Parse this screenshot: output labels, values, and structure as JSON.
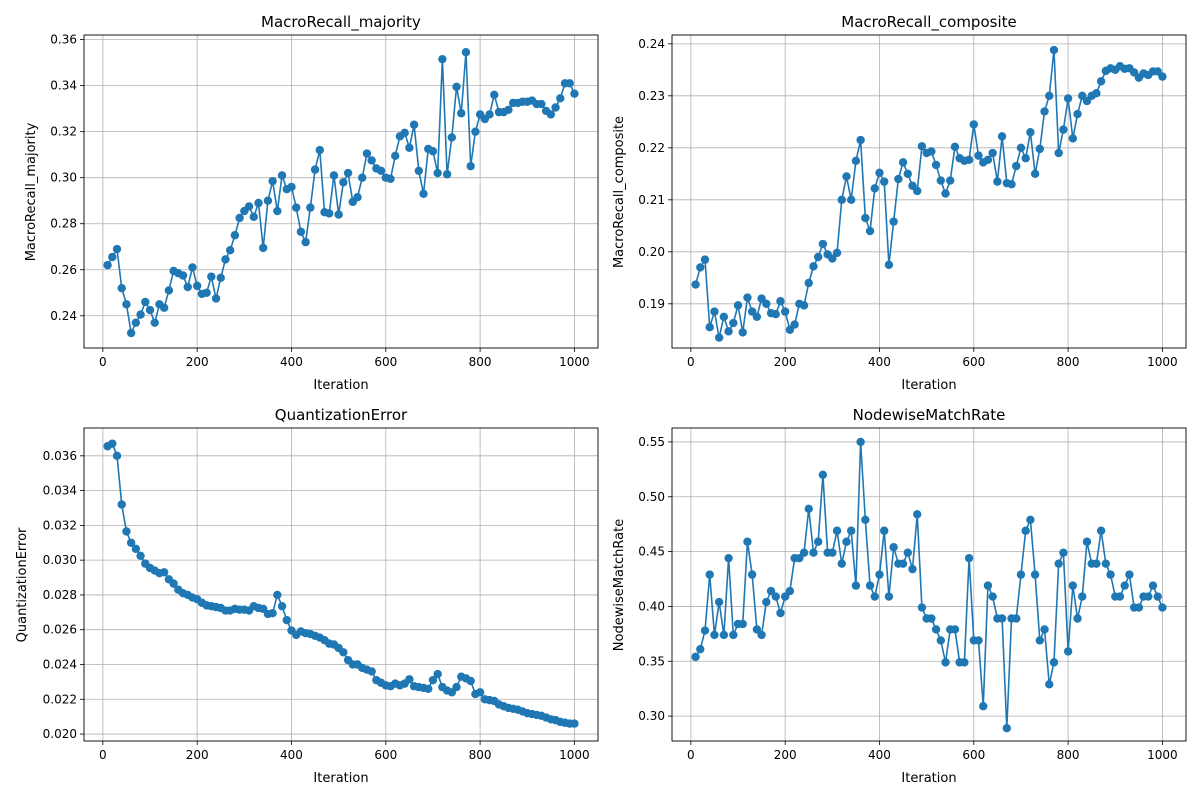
{
  "line_color": "#1f77b4",
  "grid_color": "#b0b0b0",
  "chart_data": [
    {
      "type": "line",
      "title": "MacroRecall_majority",
      "xlabel": "Iteration",
      "ylabel": "MacroRecall_majority",
      "grid": true,
      "xlim": [
        -40,
        1050
      ],
      "ylim": [
        0.226,
        0.362
      ],
      "xticks": [
        0,
        200,
        400,
        600,
        800,
        1000
      ],
      "yticks": [
        0.24,
        0.26,
        0.28,
        0.3,
        0.32,
        0.34,
        0.36
      ],
      "x": [
        10,
        20,
        30,
        40,
        50,
        60,
        70,
        80,
        90,
        100,
        110,
        120,
        130,
        140,
        150,
        160,
        170,
        180,
        190,
        200,
        210,
        220,
        230,
        240,
        250,
        260,
        270,
        280,
        290,
        300,
        310,
        320,
        330,
        340,
        350,
        360,
        370,
        380,
        390,
        400,
        410,
        420,
        430,
        440,
        450,
        460,
        470,
        480,
        490,
        500,
        510,
        520,
        530,
        540,
        550,
        560,
        570,
        580,
        590,
        600,
        610,
        620,
        630,
        640,
        650,
        660,
        670,
        680,
        690,
        700,
        710,
        720,
        730,
        740,
        750,
        760,
        770,
        780,
        790,
        800,
        810,
        820,
        830,
        840,
        850,
        860,
        870,
        880,
        890,
        900,
        910,
        920,
        930,
        940,
        950,
        960,
        970,
        980,
        990,
        1000
      ],
      "series": [
        {
          "values": [
            0.262,
            0.2655,
            0.269,
            0.252,
            0.245,
            0.2325,
            0.237,
            0.2405,
            0.246,
            0.2425,
            0.237,
            0.245,
            0.2435,
            0.251,
            0.2595,
            0.2585,
            0.2575,
            0.2525,
            0.261,
            0.253,
            0.2495,
            0.25,
            0.257,
            0.2475,
            0.2565,
            0.2645,
            0.2685,
            0.275,
            0.2825,
            0.2855,
            0.2875,
            0.283,
            0.289,
            0.2695,
            0.29,
            0.2985,
            0.2855,
            0.301,
            0.295,
            0.296,
            0.287,
            0.2765,
            0.272,
            0.287,
            0.3035,
            0.312,
            0.285,
            0.2845,
            0.301,
            0.284,
            0.298,
            0.302,
            0.2895,
            0.2915,
            0.3,
            0.3105,
            0.3075,
            0.304,
            0.303,
            0.3,
            0.2995,
            0.3095,
            0.318,
            0.3195,
            0.313,
            0.323,
            0.303,
            0.293,
            0.3125,
            0.3115,
            0.302,
            0.3515,
            0.3015,
            0.3175,
            0.3395,
            0.328,
            0.3545,
            0.305,
            0.32,
            0.3275,
            0.3255,
            0.3275,
            0.336,
            0.3285,
            0.3285,
            0.3295,
            0.3325,
            0.3325,
            0.333,
            0.333,
            0.3335,
            0.332,
            0.332,
            0.329,
            0.3275,
            0.3305,
            0.3345,
            0.341,
            0.341,
            0.3365
          ]
        }
      ]
    },
    {
      "type": "line",
      "title": "MacroRecall_composite",
      "xlabel": "Iteration",
      "ylabel": "MacroRecall_composite",
      "grid": true,
      "xlim": [
        -40,
        1050
      ],
      "ylim": [
        0.1815,
        0.2417
      ],
      "xticks": [
        0,
        200,
        400,
        600,
        800,
        1000
      ],
      "yticks": [
        0.19,
        0.2,
        0.21,
        0.22,
        0.23,
        0.24
      ],
      "x": [
        10,
        20,
        30,
        40,
        50,
        60,
        70,
        80,
        90,
        100,
        110,
        120,
        130,
        140,
        150,
        160,
        170,
        180,
        190,
        200,
        210,
        220,
        230,
        240,
        250,
        260,
        270,
        280,
        290,
        300,
        310,
        320,
        330,
        340,
        350,
        360,
        370,
        380,
        390,
        400,
        410,
        420,
        430,
        440,
        450,
        460,
        470,
        480,
        490,
        500,
        510,
        520,
        530,
        540,
        550,
        560,
        570,
        580,
        590,
        600,
        610,
        620,
        630,
        640,
        650,
        660,
        670,
        680,
        690,
        700,
        710,
        720,
        730,
        740,
        750,
        760,
        770,
        780,
        790,
        800,
        810,
        820,
        830,
        840,
        850,
        860,
        870,
        880,
        890,
        900,
        910,
        920,
        930,
        940,
        950,
        960,
        970,
        980,
        990,
        1000
      ],
      "series": [
        {
          "values": [
            0.1937,
            0.197,
            0.1985,
            0.1855,
            0.1885,
            0.1835,
            0.1875,
            0.1847,
            0.1863,
            0.1897,
            0.1845,
            0.1912,
            0.1885,
            0.1875,
            0.191,
            0.19,
            0.1882,
            0.188,
            0.1905,
            0.1885,
            0.185,
            0.186,
            0.19,
            0.1897,
            0.194,
            0.1972,
            0.199,
            0.2015,
            0.1995,
            0.1987,
            0.1998,
            0.21,
            0.2145,
            0.21,
            0.2175,
            0.2215,
            0.2065,
            0.204,
            0.2122,
            0.2152,
            0.2135,
            0.1975,
            0.2058,
            0.214,
            0.2172,
            0.215,
            0.2127,
            0.2117,
            0.2203,
            0.219,
            0.2193,
            0.2167,
            0.2137,
            0.2112,
            0.2137,
            0.2202,
            0.218,
            0.2175,
            0.2177,
            0.2245,
            0.2185,
            0.2172,
            0.2177,
            0.219,
            0.2135,
            0.2222,
            0.2132,
            0.213,
            0.2165,
            0.22,
            0.218,
            0.223,
            0.215,
            0.2198,
            0.227,
            0.23,
            0.2388,
            0.219,
            0.2235,
            0.2295,
            0.2218,
            0.2265,
            0.23,
            0.229,
            0.23,
            0.2305,
            0.2328,
            0.2348,
            0.2353,
            0.235,
            0.2357,
            0.2352,
            0.2353,
            0.2345,
            0.2335,
            0.2343,
            0.234,
            0.2347,
            0.2347,
            0.2337
          ]
        }
      ]
    },
    {
      "type": "line",
      "title": "QuantizationError",
      "xlabel": "Iteration",
      "ylabel": "QuantizationError",
      "grid": true,
      "xlim": [
        -40,
        1050
      ],
      "ylim": [
        0.0196,
        0.0376
      ],
      "xticks": [
        0,
        200,
        400,
        600,
        800,
        1000
      ],
      "yticks": [
        0.02,
        0.022,
        0.024,
        0.026,
        0.028,
        0.03,
        0.032,
        0.034,
        0.036
      ],
      "x": [
        10,
        20,
        30,
        40,
        50,
        60,
        70,
        80,
        90,
        100,
        110,
        120,
        130,
        140,
        150,
        160,
        170,
        180,
        190,
        200,
        210,
        220,
        230,
        240,
        250,
        260,
        270,
        280,
        290,
        300,
        310,
        320,
        330,
        340,
        350,
        360,
        370,
        380,
        390,
        400,
        410,
        420,
        430,
        440,
        450,
        460,
        470,
        480,
        490,
        500,
        510,
        520,
        530,
        540,
        550,
        560,
        570,
        580,
        590,
        600,
        610,
        620,
        630,
        640,
        650,
        660,
        670,
        680,
        690,
        700,
        710,
        720,
        730,
        740,
        750,
        760,
        770,
        780,
        790,
        800,
        810,
        820,
        830,
        840,
        850,
        860,
        870,
        880,
        890,
        900,
        910,
        920,
        930,
        940,
        950,
        960,
        970,
        980,
        990,
        1000
      ],
      "series": [
        {
          "values": [
            0.03655,
            0.0367,
            0.036,
            0.0332,
            0.03165,
            0.031,
            0.03065,
            0.03025,
            0.0298,
            0.02955,
            0.0294,
            0.02925,
            0.0293,
            0.0289,
            0.02865,
            0.0283,
            0.0281,
            0.028,
            0.02785,
            0.02775,
            0.02755,
            0.0274,
            0.02735,
            0.0273,
            0.02725,
            0.0271,
            0.0271,
            0.0272,
            0.02715,
            0.02715,
            0.0271,
            0.02735,
            0.02725,
            0.0272,
            0.0269,
            0.02695,
            0.028,
            0.02735,
            0.02655,
            0.02595,
            0.0257,
            0.0259,
            0.0258,
            0.02575,
            0.02565,
            0.02555,
            0.0254,
            0.0252,
            0.02515,
            0.02495,
            0.0247,
            0.02425,
            0.024,
            0.024,
            0.0238,
            0.0237,
            0.0236,
            0.0231,
            0.02295,
            0.0228,
            0.02275,
            0.0229,
            0.0228,
            0.0229,
            0.02315,
            0.02275,
            0.0227,
            0.02265,
            0.0226,
            0.0231,
            0.02345,
            0.0227,
            0.0225,
            0.0224,
            0.0227,
            0.0233,
            0.0232,
            0.02305,
            0.0223,
            0.0224,
            0.022,
            0.02195,
            0.0219,
            0.0217,
            0.0216,
            0.0215,
            0.02145,
            0.0214,
            0.0213,
            0.0212,
            0.02115,
            0.0211,
            0.02105,
            0.02095,
            0.02085,
            0.0208,
            0.0207,
            0.02065,
            0.0206,
            0.0206
          ]
        }
      ]
    },
    {
      "type": "line",
      "title": "NodewiseMatchRate",
      "xlabel": "Iteration",
      "ylabel": "NodewiseMatchRate",
      "grid": true,
      "xlim": [
        -40,
        1050
      ],
      "ylim": [
        0.2773,
        0.5627
      ],
      "xticks": [
        0,
        200,
        400,
        600,
        800,
        1000
      ],
      "yticks": [
        0.3,
        0.35,
        0.4,
        0.45,
        0.5,
        0.55
      ],
      "x": [
        10,
        20,
        30,
        40,
        50,
        60,
        70,
        80,
        90,
        100,
        110,
        120,
        130,
        140,
        150,
        160,
        170,
        180,
        190,
        200,
        210,
        220,
        230,
        240,
        250,
        260,
        270,
        280,
        290,
        300,
        310,
        320,
        330,
        340,
        350,
        360,
        370,
        380,
        390,
        400,
        410,
        420,
        430,
        440,
        450,
        460,
        470,
        480,
        490,
        500,
        510,
        520,
        530,
        540,
        550,
        560,
        570,
        580,
        590,
        600,
        610,
        620,
        630,
        640,
        650,
        660,
        670,
        680,
        690,
        700,
        710,
        720,
        730,
        740,
        750,
        760,
        770,
        780,
        790,
        800,
        810,
        820,
        830,
        840,
        850,
        860,
        870,
        880,
        890,
        900,
        910,
        920,
        930,
        940,
        950,
        960,
        970,
        980,
        990,
        1000
      ],
      "series": [
        {
          "values": [
            0.354,
            0.361,
            0.378,
            0.429,
            0.374,
            0.404,
            0.374,
            0.444,
            0.374,
            0.384,
            0.384,
            0.459,
            0.429,
            0.379,
            0.374,
            0.404,
            0.414,
            0.409,
            0.394,
            0.409,
            0.414,
            0.444,
            0.444,
            0.449,
            0.489,
            0.449,
            0.459,
            0.52,
            0.449,
            0.449,
            0.469,
            0.439,
            0.459,
            0.469,
            0.419,
            0.55,
            0.479,
            0.419,
            0.409,
            0.429,
            0.469,
            0.409,
            0.454,
            0.439,
            0.439,
            0.449,
            0.434,
            0.484,
            0.399,
            0.389,
            0.389,
            0.379,
            0.369,
            0.349,
            0.379,
            0.379,
            0.349,
            0.349,
            0.444,
            0.369,
            0.369,
            0.309,
            0.419,
            0.409,
            0.389,
            0.389,
            0.289,
            0.389,
            0.389,
            0.429,
            0.469,
            0.479,
            0.429,
            0.369,
            0.379,
            0.329,
            0.349,
            0.439,
            0.449,
            0.359,
            0.419,
            0.389,
            0.409,
            0.459,
            0.439,
            0.439,
            0.469,
            0.439,
            0.429,
            0.409,
            0.409,
            0.419,
            0.429,
            0.399,
            0.399,
            0.409,
            0.409,
            0.419,
            0.409,
            0.399
          ]
        }
      ]
    }
  ]
}
